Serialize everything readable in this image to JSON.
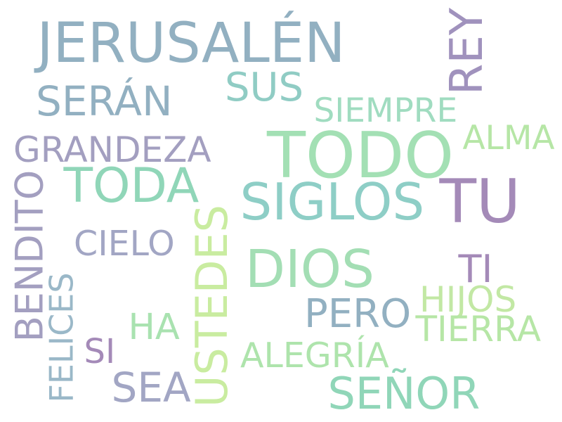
{
  "words": [
    {
      "text": "JERUSALÉN",
      "color": "#92b0c1"
    },
    {
      "text": "REY",
      "color": "#a092bd"
    },
    {
      "text": "SUS",
      "color": "#90ccc4"
    },
    {
      "text": "SERÁN",
      "color": "#92b0c1"
    },
    {
      "text": "SIEMPRE",
      "color": "#a0dcc0"
    },
    {
      "text": "TODO",
      "color": "#a3e0b4"
    },
    {
      "text": "ALMA",
      "color": "#b6e6a6"
    },
    {
      "text": "GRANDEZA",
      "color": "#a39fc0"
    },
    {
      "text": "TODA",
      "color": "#90d6b8"
    },
    {
      "text": "BENDITO",
      "color": "#a39fc0"
    },
    {
      "text": "SIGLOS",
      "color": "#8ecec6"
    },
    {
      "text": "TU",
      "color": "#a48ab8"
    },
    {
      "text": "USTEDES",
      "color": "#c9eca0"
    },
    {
      "text": "CIELO",
      "color": "#a2a6c4"
    },
    {
      "text": "DIOS",
      "color": "#a3deb4"
    },
    {
      "text": "TI",
      "color": "#a48ab8"
    },
    {
      "text": "FELICES",
      "color": "#9ab8c8"
    },
    {
      "text": "PERO",
      "color": "#92b0c1"
    },
    {
      "text": "HIJOS",
      "color": "#c2e8a4"
    },
    {
      "text": "HA",
      "color": "#a9e2b0"
    },
    {
      "text": "TIERRA",
      "color": "#b6e6a6"
    },
    {
      "text": "SI",
      "color": "#a48ab8"
    },
    {
      "text": "ALEGRÍA",
      "color": "#aee4ac"
    },
    {
      "text": "SEA",
      "color": "#a2a6c4"
    },
    {
      "text": "SEÑOR",
      "color": "#90d6b8"
    }
  ]
}
